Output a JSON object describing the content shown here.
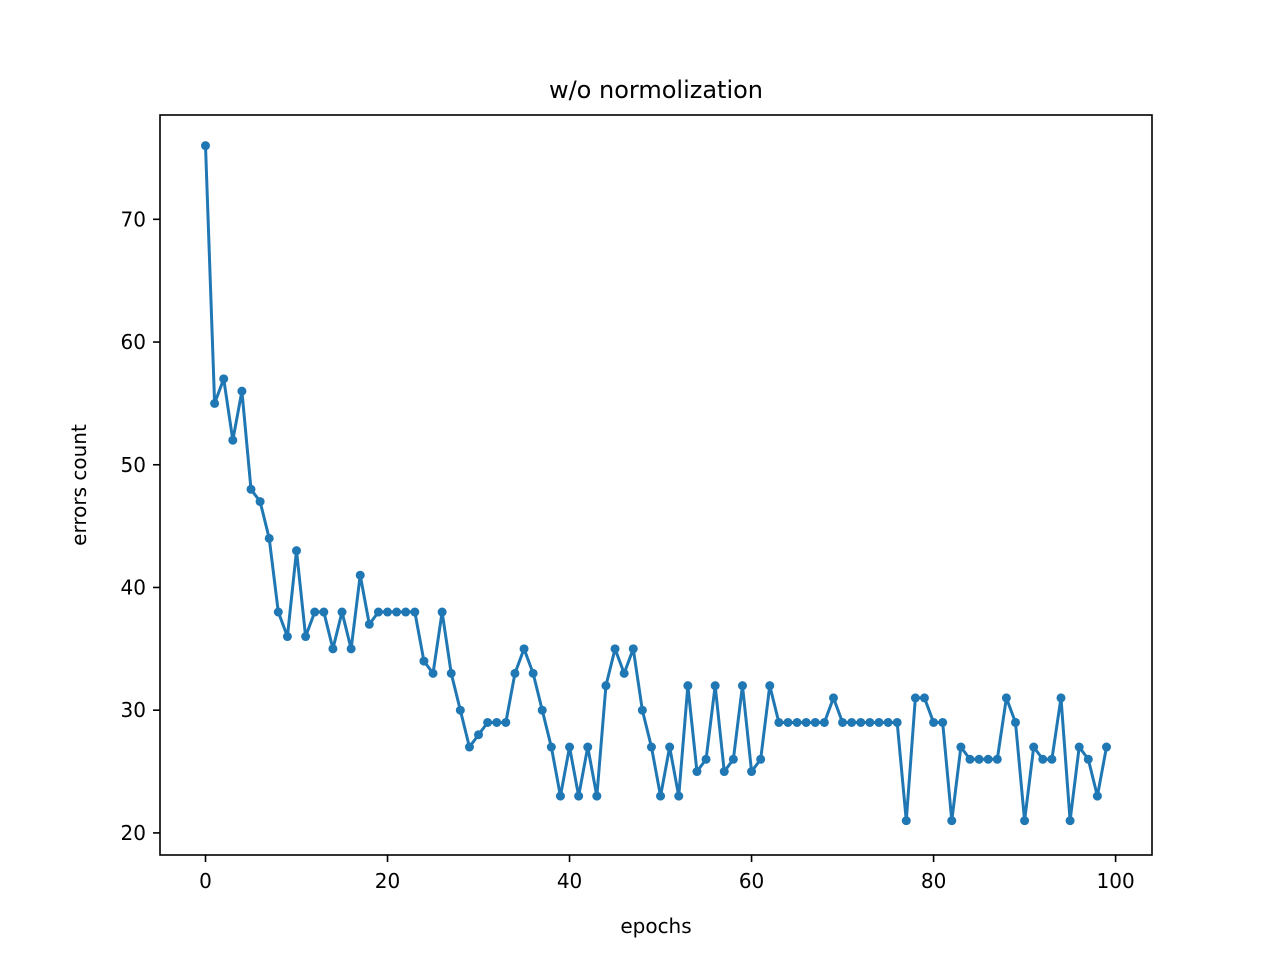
{
  "chart_data": {
    "type": "line",
    "title": "w/o normolization",
    "xlabel": "epochs",
    "ylabel": "errors count",
    "xlim": [
      -5,
      104
    ],
    "ylim": [
      18.2,
      78.5
    ],
    "xticks": [
      0,
      20,
      40,
      60,
      80,
      100
    ],
    "yticks": [
      20,
      30,
      40,
      50,
      60,
      70
    ],
    "grid": false,
    "legend": "none",
    "color": "#1f77b4",
    "marker": "circle",
    "series": [
      {
        "x": [
          0,
          1,
          2,
          3,
          4,
          5,
          6,
          7,
          8,
          9,
          10,
          11,
          12,
          13,
          14,
          15,
          16,
          17,
          18,
          19,
          20,
          21,
          22,
          23,
          24,
          25,
          26,
          27,
          28,
          29,
          30,
          31,
          32,
          33,
          34,
          35,
          36,
          37,
          38,
          39,
          40,
          41,
          42,
          43,
          44,
          45,
          46,
          47,
          48,
          49,
          50,
          51,
          52,
          53,
          54,
          55,
          56,
          57,
          58,
          59,
          60,
          61,
          62,
          63,
          64,
          65,
          66,
          67,
          68,
          69,
          70,
          71,
          72,
          73,
          74,
          75,
          76,
          77,
          78,
          79,
          80,
          81,
          82,
          83,
          84,
          85,
          86,
          87,
          88,
          89,
          90,
          91,
          92,
          93,
          94,
          95,
          96,
          97,
          98,
          99
        ],
        "values": [
          76,
          55,
          57,
          52,
          56,
          48,
          47,
          44,
          38,
          36,
          43,
          36,
          38,
          38,
          35,
          38,
          35,
          41,
          37,
          38,
          38,
          38,
          38,
          38,
          34,
          33,
          38,
          33,
          30,
          27,
          28,
          29,
          29,
          29,
          33,
          35,
          33,
          30,
          27,
          23,
          27,
          23,
          27,
          23,
          32,
          35,
          33,
          35,
          30,
          27,
          23,
          27,
          23,
          32,
          25,
          26,
          32,
          25,
          26,
          32,
          25,
          26,
          32,
          29,
          29,
          29,
          29,
          29,
          29,
          31,
          29,
          29,
          29,
          29,
          29,
          29,
          29,
          21,
          31,
          31,
          29,
          29,
          21,
          27,
          26,
          26,
          26,
          26,
          31,
          29,
          21,
          27,
          26,
          26,
          31,
          21,
          27,
          26,
          23,
          27
        ]
      }
    ]
  }
}
